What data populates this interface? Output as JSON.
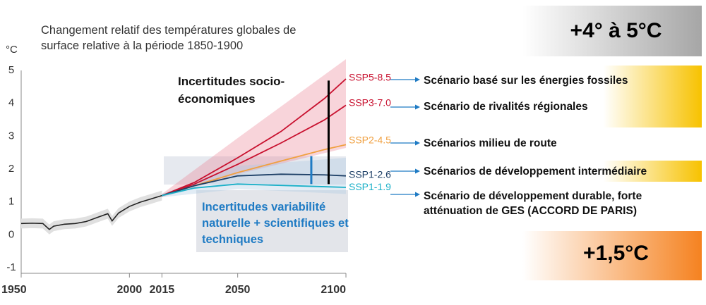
{
  "chart_data": {
    "type": "line",
    "title": "Changement relatif des températures globales de surface relative à la période 1850-1900",
    "ylabel": "°C",
    "xlim": [
      1950,
      2100
    ],
    "ylim": [
      -1,
      5
    ],
    "x_ticks": [
      "1950",
      "2000",
      "2015",
      "2050",
      "2100"
    ],
    "y_ticks": [
      "-1",
      "0",
      "1",
      "2",
      "3",
      "4",
      "5"
    ],
    "historical": {
      "x": [
        1950,
        1955,
        1960,
        1963,
        1965,
        1970,
        1975,
        1980,
        1985,
        1990,
        1992,
        1995,
        2000,
        2005,
        2010,
        2015
      ],
      "y": [
        0.3,
        0.31,
        0.3,
        0.12,
        0.22,
        0.28,
        0.3,
        0.36,
        0.48,
        0.6,
        0.38,
        0.62,
        0.82,
        0.95,
        1.05,
        1.15
      ]
    },
    "series": [
      {
        "name": "SSP5-8.5",
        "color": "#c8102e",
        "x": [
          2015,
          2030,
          2050,
          2070,
          2090,
          2100
        ],
        "y": [
          1.15,
          1.55,
          2.3,
          3.1,
          4.1,
          4.7
        ]
      },
      {
        "name": "SSP3-7.0",
        "color": "#c8102e",
        "x": [
          2015,
          2030,
          2050,
          2070,
          2090,
          2100
        ],
        "y": [
          1.15,
          1.5,
          2.1,
          2.75,
          3.45,
          3.9
        ]
      },
      {
        "name": "SSP2-4.5",
        "color": "#f0a040",
        "x": [
          2015,
          2030,
          2050,
          2070,
          2090,
          2100
        ],
        "y": [
          1.15,
          1.45,
          1.85,
          2.2,
          2.55,
          2.7
        ]
      },
      {
        "name": "SSP1-2.6",
        "color": "#1d3f66",
        "x": [
          2015,
          2030,
          2050,
          2070,
          2090,
          2100
        ],
        "y": [
          1.15,
          1.45,
          1.75,
          1.8,
          1.78,
          1.75
        ]
      },
      {
        "name": "SSP1-1.9",
        "color": "#1ab0c8",
        "x": [
          2015,
          2030,
          2050,
          2070,
          2090,
          2100
        ],
        "y": [
          1.15,
          1.38,
          1.5,
          1.46,
          1.42,
          1.4
        ]
      }
    ],
    "uncertainty_band": {
      "x": [
        2015,
        2050,
        2100
      ],
      "upper": [
        1.2,
        2.9,
        5.3
      ],
      "lower": [
        1.1,
        1.8,
        2.6
      ]
    },
    "lower_band": {
      "x": [
        2015,
        2050,
        2100
      ],
      "upper": [
        1.2,
        2.05,
        2.3
      ],
      "lower": [
        1.1,
        1.35,
        1.2
      ]
    }
  },
  "annotations": {
    "socio_uncertainty": "Incertitudes socio-économiques",
    "natural_uncertainty": "Incertitudes variabilité naturelle + scientifiques et techniques"
  },
  "scenarios": [
    {
      "ssp": "SSP5-8.5",
      "label": "Scénario basé sur les énergies fossiles"
    },
    {
      "ssp": "SSP3-7.0",
      "label": "Scénario de rivalités régionales"
    },
    {
      "ssp": "SSP2-4.5",
      "label": "Scénarios milieu de route"
    },
    {
      "ssp": "SSP1-2.6",
      "label": "Scénarios de développement intermédiaire"
    },
    {
      "ssp": "SSP1-1.9",
      "label": "Scénario de développement durable, forte atténuation de GES (ACCORD DE PARIS)"
    }
  ],
  "range_boxes": {
    "top": "+4° à 5°C",
    "bottom": "+1,5°C"
  },
  "colors": {
    "fossil": "#f7c200",
    "orange": "#f58220",
    "grey": "#9a9a9a",
    "arrow": "#1f7bc4"
  }
}
